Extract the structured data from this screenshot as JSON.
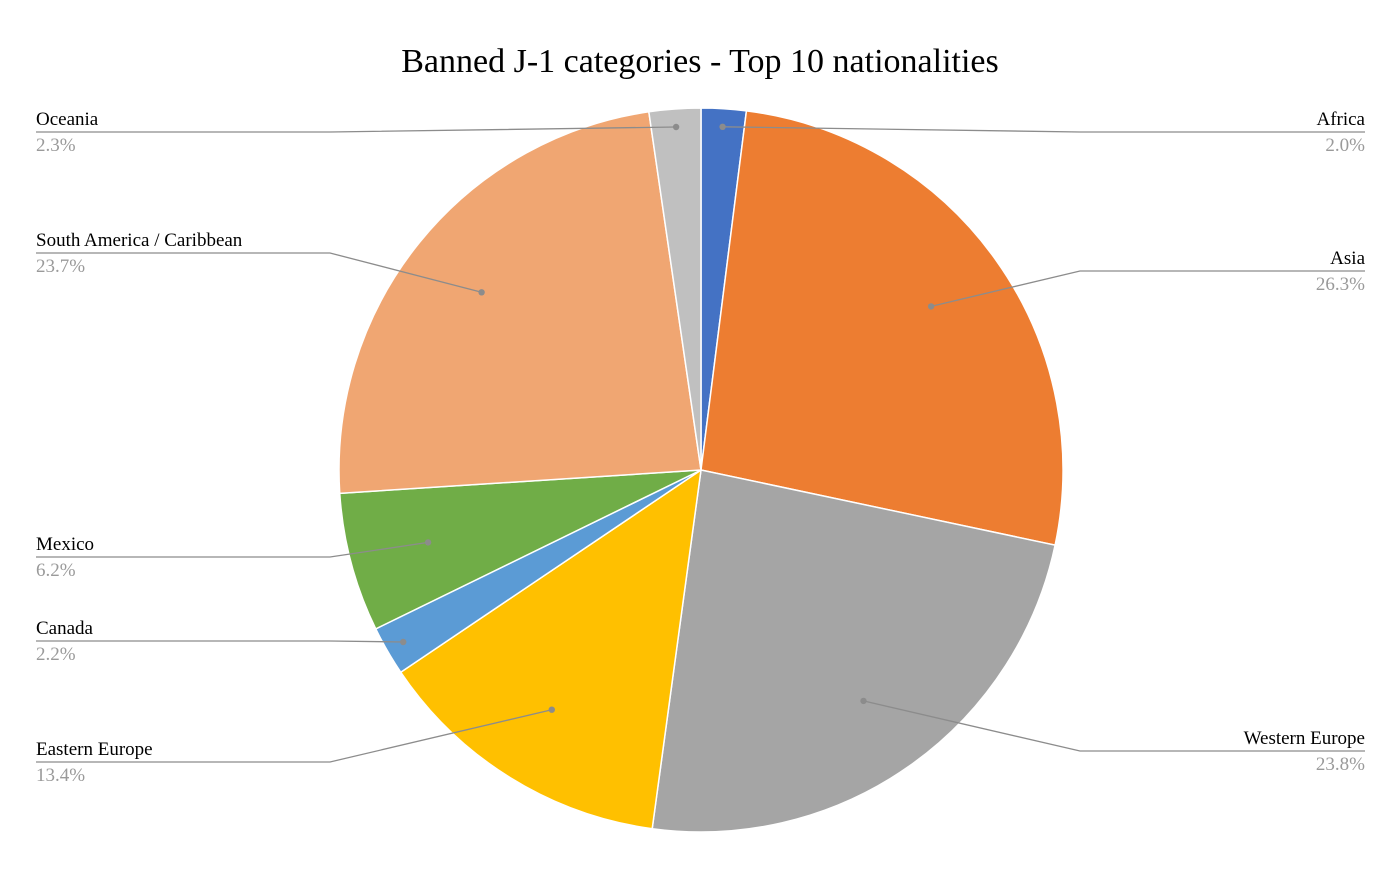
{
  "chart_data": {
    "type": "pie",
    "title": "Banned J-1 categories - Top 10 nationalities",
    "slices": [
      {
        "label": "Africa",
        "value": 2.0,
        "display": "2.0%",
        "color": "#4472C4",
        "side": "right"
      },
      {
        "label": "Asia",
        "value": 26.3,
        "display": "26.3%",
        "color": "#ED7D31",
        "side": "right"
      },
      {
        "label": "Western Europe",
        "value": 23.8,
        "display": "23.8%",
        "color": "#A5A5A5",
        "side": "right"
      },
      {
        "label": "Eastern Europe",
        "value": 13.4,
        "display": "13.4%",
        "color": "#FFC000",
        "side": "left"
      },
      {
        "label": "Canada",
        "value": 2.2,
        "display": "2.2%",
        "color": "#5B9BD5",
        "side": "left"
      },
      {
        "label": "Mexico",
        "value": 6.2,
        "display": "6.2%",
        "color": "#70AD47",
        "side": "left"
      },
      {
        "label": "South America / Caribbean",
        "value": 23.7,
        "display": "23.7%",
        "color": "#F0A672",
        "side": "left"
      },
      {
        "label": "Oceania",
        "value": 2.3,
        "display": "2.3%",
        "color": "#C0C0C0",
        "side": "left"
      }
    ],
    "start_angle": "12 o'clock",
    "direction": "clockwise",
    "legend": "none (data callouts beside the pie)"
  }
}
